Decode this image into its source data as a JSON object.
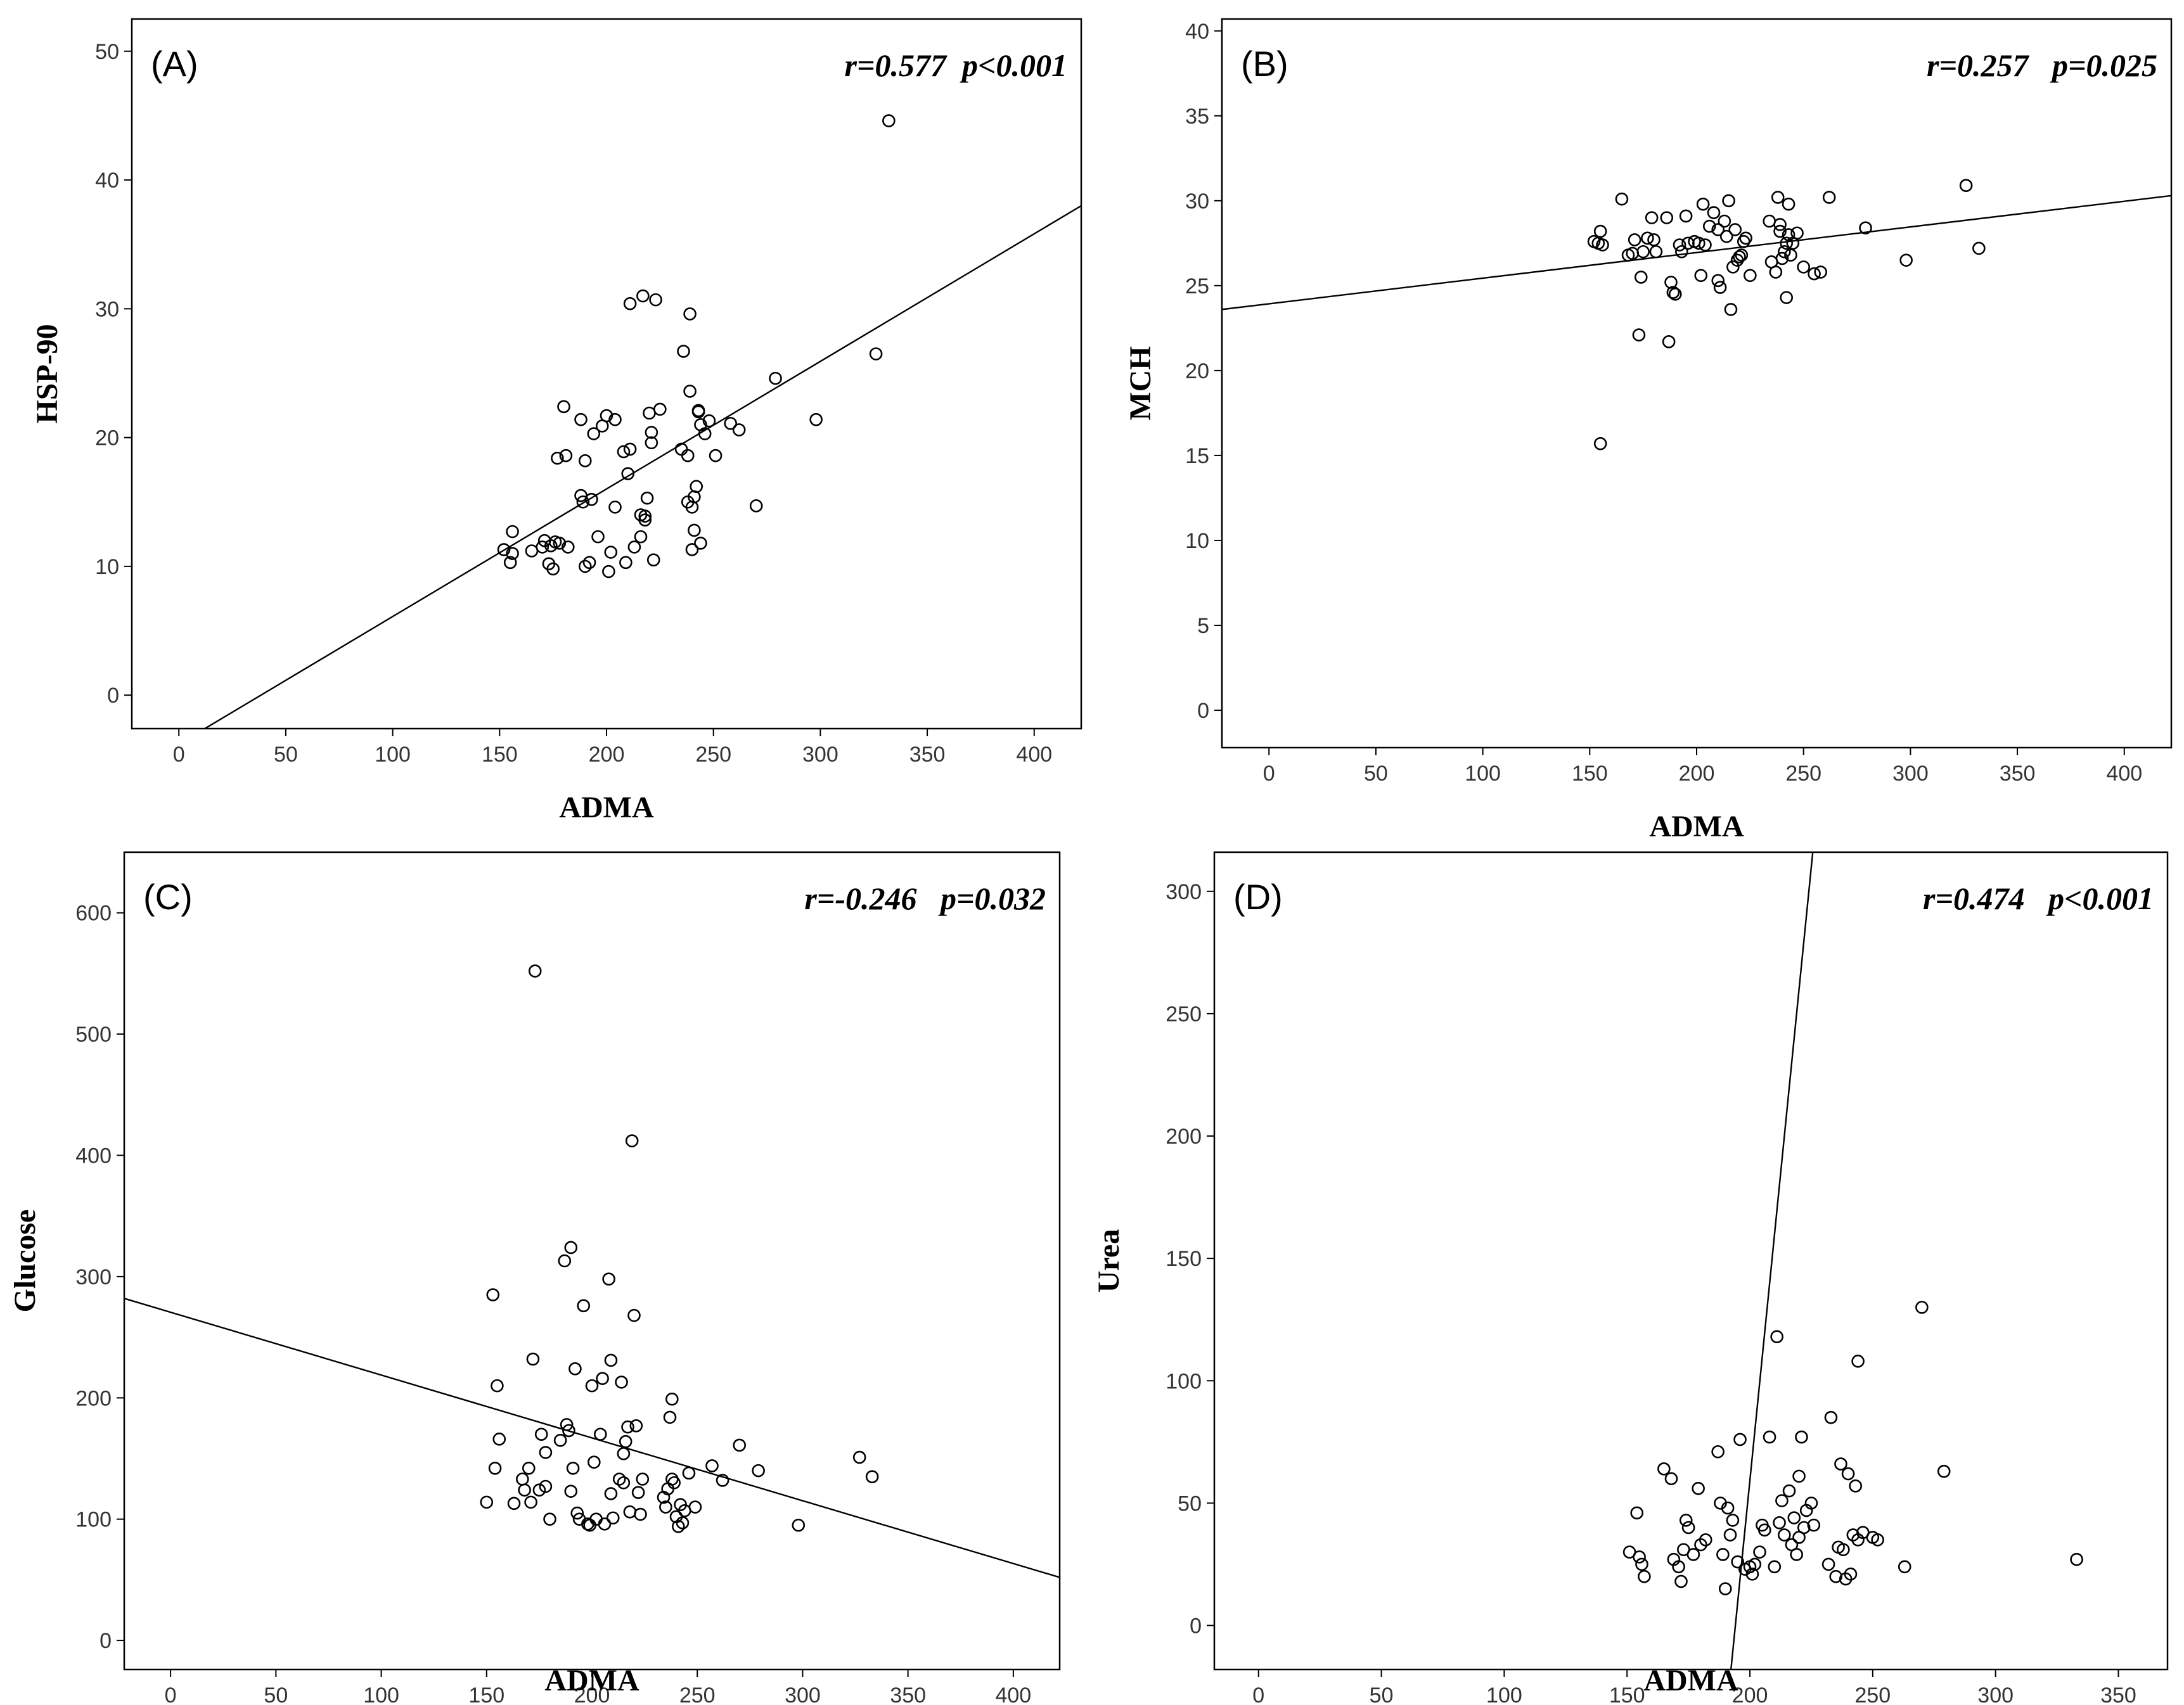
{
  "chart_data": [
    {
      "type": "scatter",
      "panel_label": "(A)",
      "stat": "r=0.577  p<0.001",
      "xlabel": "ADMA",
      "ylabel": "HSP-90",
      "xlim": [
        -22,
        422
      ],
      "ylim": [
        -2.6,
        52.5
      ],
      "xticks": [
        0,
        50,
        100,
        150,
        200,
        250,
        300,
        350,
        400
      ],
      "yticks": [
        0,
        10,
        20,
        30,
        40,
        50
      ],
      "fit_line": [
        [
          -22,
          -5.98
        ],
        [
          422,
          38.0
        ]
      ],
      "points": [
        [
          152,
          11.3
        ],
        [
          155,
          10.3
        ],
        [
          156,
          11.0
        ],
        [
          156,
          12.7
        ],
        [
          165,
          11.2
        ],
        [
          170,
          11.5
        ],
        [
          171,
          12.0
        ],
        [
          173,
          10.2
        ],
        [
          174,
          11.6
        ],
        [
          175,
          9.8
        ],
        [
          176,
          11.9
        ],
        [
          178,
          11.8
        ],
        [
          177,
          18.4
        ],
        [
          180,
          22.4
        ],
        [
          181,
          18.6
        ],
        [
          182,
          11.5
        ],
        [
          188,
          21.4
        ],
        [
          188,
          15.5
        ],
        [
          189,
          15.0
        ],
        [
          190,
          10.0
        ],
        [
          190,
          18.2
        ],
        [
          192,
          10.3
        ],
        [
          193,
          15.2
        ],
        [
          194,
          20.3
        ],
        [
          196,
          12.3
        ],
        [
          198,
          20.9
        ],
        [
          200,
          21.7
        ],
        [
          201,
          9.6
        ],
        [
          202,
          11.1
        ],
        [
          204,
          21.4
        ],
        [
          204,
          14.6
        ],
        [
          208,
          18.9
        ],
        [
          209,
          10.3
        ],
        [
          210,
          17.2
        ],
        [
          211,
          19.1
        ],
        [
          211,
          30.4
        ],
        [
          213,
          11.5
        ],
        [
          216,
          12.3
        ],
        [
          216,
          14.0
        ],
        [
          217,
          31.0
        ],
        [
          218,
          13.6
        ],
        [
          218,
          13.9
        ],
        [
          219,
          15.3
        ],
        [
          220,
          21.9
        ],
        [
          221,
          20.4
        ],
        [
          221,
          19.6
        ],
        [
          222,
          10.5
        ],
        [
          223,
          30.7
        ],
        [
          225,
          22.2
        ],
        [
          235,
          19.1
        ],
        [
          236,
          26.7
        ],
        [
          238,
          15.0
        ],
        [
          238,
          18.6
        ],
        [
          239,
          23.6
        ],
        [
          239,
          29.6
        ],
        [
          240,
          11.3
        ],
        [
          240,
          14.6
        ],
        [
          241,
          15.4
        ],
        [
          241,
          12.8
        ],
        [
          242,
          16.2
        ],
        [
          243,
          22.1
        ],
        [
          243,
          22.0
        ],
        [
          244,
          11.8
        ],
        [
          244,
          21.0
        ],
        [
          246,
          20.3
        ],
        [
          248,
          21.3
        ],
        [
          251,
          18.6
        ],
        [
          258,
          21.1
        ],
        [
          262,
          20.6
        ],
        [
          270,
          14.7
        ],
        [
          279,
          24.6
        ],
        [
          298,
          21.4
        ],
        [
          326,
          26.5
        ],
        [
          332,
          44.6
        ]
      ]
    },
    {
      "type": "scatter",
      "panel_label": "(B)",
      "stat": "r=0.257   p=0.025",
      "xlabel": "ADMA",
      "ylabel": "MCH",
      "xlim": [
        -22,
        422
      ],
      "ylim": [
        -2.2,
        40.7
      ],
      "xticks": [
        0,
        50,
        100,
        150,
        200,
        250,
        300,
        350,
        400
      ],
      "yticks": [
        0,
        5,
        10,
        15,
        20,
        25,
        30,
        35,
        40
      ],
      "fit_line": [
        [
          -22,
          23.6
        ],
        [
          422,
          30.3
        ]
      ],
      "points": [
        [
          152,
          27.6
        ],
        [
          154,
          27.5
        ],
        [
          155,
          28.2
        ],
        [
          156,
          27.4
        ],
        [
          155,
          15.7
        ],
        [
          165,
          30.1
        ],
        [
          168,
          26.8
        ],
        [
          170,
          26.9
        ],
        [
          171,
          27.7
        ],
        [
          173,
          22.1
        ],
        [
          174,
          25.5
        ],
        [
          175,
          27.0
        ],
        [
          177,
          27.8
        ],
        [
          180,
          27.7
        ],
        [
          179,
          29.0
        ],
        [
          181,
          27.0
        ],
        [
          186,
          29.0
        ],
        [
          187,
          21.7
        ],
        [
          188,
          25.2
        ],
        [
          189,
          24.6
        ],
        [
          190,
          24.5
        ],
        [
          192,
          27.4
        ],
        [
          193,
          27.0
        ],
        [
          195,
          29.1
        ],
        [
          196,
          27.5
        ],
        [
          199,
          27.6
        ],
        [
          201,
          27.5
        ],
        [
          202,
          25.6
        ],
        [
          203,
          29.8
        ],
        [
          204,
          27.4
        ],
        [
          206,
          28.5
        ],
        [
          208,
          29.3
        ],
        [
          210,
          25.3
        ],
        [
          210,
          28.3
        ],
        [
          211,
          24.9
        ],
        [
          213,
          28.8
        ],
        [
          214,
          27.9
        ],
        [
          215,
          30.0
        ],
        [
          216,
          23.6
        ],
        [
          217,
          26.1
        ],
        [
          218,
          28.3
        ],
        [
          219,
          26.5
        ],
        [
          220,
          26.7
        ],
        [
          221,
          26.8
        ],
        [
          222,
          27.6
        ],
        [
          223,
          27.8
        ],
        [
          225,
          25.6
        ],
        [
          234,
          28.8
        ],
        [
          235,
          26.4
        ],
        [
          237,
          25.8
        ],
        [
          238,
          30.2
        ],
        [
          239,
          28.2
        ],
        [
          239,
          28.6
        ],
        [
          240,
          26.6
        ],
        [
          241,
          27.0
        ],
        [
          242,
          27.5
        ],
        [
          242,
          24.3
        ],
        [
          243,
          28.0
        ],
        [
          243,
          29.8
        ],
        [
          244,
          26.8
        ],
        [
          245,
          27.5
        ],
        [
          247,
          28.1
        ],
        [
          250,
          26.1
        ],
        [
          255,
          25.7
        ],
        [
          258,
          25.8
        ],
        [
          262,
          30.2
        ],
        [
          279,
          28.4
        ],
        [
          298,
          26.5
        ],
        [
          326,
          30.9
        ],
        [
          332,
          27.2
        ]
      ]
    },
    {
      "type": "scatter",
      "panel_label": "(C)",
      "stat": "r=-0.246   p=0.032",
      "xlabel": "ADMA",
      "ylabel": "Glucose",
      "xlim": [
        -22,
        422
      ],
      "ylim": [
        -24,
        650
      ],
      "xticks": [
        0,
        50,
        100,
        150,
        200,
        250,
        300,
        350,
        400
      ],
      "yticks": [
        0,
        100,
        200,
        300,
        400,
        500,
        600
      ],
      "fit_line": [
        [
          -22,
          282
        ],
        [
          422,
          52
        ]
      ],
      "points": [
        [
          150,
          114
        ],
        [
          153,
          285
        ],
        [
          154,
          142
        ],
        [
          155,
          210
        ],
        [
          156,
          166
        ],
        [
          163,
          113
        ],
        [
          167,
          133
        ],
        [
          168,
          124
        ],
        [
          170,
          142
        ],
        [
          171,
          114
        ],
        [
          172,
          232
        ],
        [
          173,
          552
        ],
        [
          175,
          124
        ],
        [
          176,
          170
        ],
        [
          178,
          127
        ],
        [
          178,
          155
        ],
        [
          180,
          100
        ],
        [
          185,
          165
        ],
        [
          187,
          313
        ],
        [
          188,
          178
        ],
        [
          189,
          173
        ],
        [
          190,
          324
        ],
        [
          190,
          123
        ],
        [
          191,
          142
        ],
        [
          192,
          224
        ],
        [
          193,
          105
        ],
        [
          194,
          100
        ],
        [
          196,
          276
        ],
        [
          198,
          96
        ],
        [
          199,
          95
        ],
        [
          200,
          210
        ],
        [
          201,
          147
        ],
        [
          202,
          100
        ],
        [
          204,
          170
        ],
        [
          205,
          216
        ],
        [
          206,
          96
        ],
        [
          208,
          298
        ],
        [
          209,
          231
        ],
        [
          209,
          121
        ],
        [
          210,
          101
        ],
        [
          213,
          133
        ],
        [
          214,
          213
        ],
        [
          215,
          130
        ],
        [
          215,
          154
        ],
        [
          216,
          164
        ],
        [
          217,
          176
        ],
        [
          218,
          106
        ],
        [
          219,
          412
        ],
        [
          220,
          268
        ],
        [
          221,
          177
        ],
        [
          222,
          122
        ],
        [
          223,
          104
        ],
        [
          224,
          133
        ],
        [
          234,
          118
        ],
        [
          235,
          110
        ],
        [
          236,
          125
        ],
        [
          237,
          184
        ],
        [
          238,
          199
        ],
        [
          238,
          133
        ],
        [
          239,
          130
        ],
        [
          240,
          102
        ],
        [
          241,
          94
        ],
        [
          242,
          112
        ],
        [
          243,
          97
        ],
        [
          244,
          107
        ],
        [
          246,
          138
        ],
        [
          249,
          110
        ],
        [
          257,
          144
        ],
        [
          262,
          132
        ],
        [
          270,
          161
        ],
        [
          279,
          140
        ],
        [
          298,
          95
        ],
        [
          327,
          151
        ],
        [
          333,
          135
        ]
      ]
    },
    {
      "type": "scatter",
      "panel_label": "(D)",
      "stat": "r=0.474   p<0.001",
      "xlabel": "ADMA",
      "ylabel": "Urea",
      "xlim": [
        -18,
        370
      ],
      "ylim": [
        -18,
        316
      ],
      "xticks": [
        0,
        50,
        100,
        150,
        200,
        250,
        300,
        350
      ],
      "yticks": [
        0,
        50,
        100,
        150,
        200,
        250,
        300
      ],
      "fit_line": [
        [
          192.3,
          -18
        ],
        [
          225.6,
          316
        ]
      ],
      "points": [
        [
          151,
          30
        ],
        [
          154,
          46
        ],
        [
          155,
          28
        ],
        [
          156,
          25
        ],
        [
          157,
          20
        ],
        [
          165,
          64
        ],
        [
          168,
          60
        ],
        [
          169,
          27
        ],
        [
          171,
          24
        ],
        [
          172,
          18
        ],
        [
          173,
          31
        ],
        [
          174,
          43
        ],
        [
          175,
          40
        ],
        [
          177,
          29
        ],
        [
          179,
          56
        ],
        [
          180,
          33
        ],
        [
          182,
          35
        ],
        [
          187,
          71
        ],
        [
          188,
          50
        ],
        [
          189,
          29
        ],
        [
          190,
          15
        ],
        [
          191,
          48
        ],
        [
          192,
          37
        ],
        [
          193,
          43
        ],
        [
          195,
          26
        ],
        [
          196,
          76
        ],
        [
          198,
          23
        ],
        [
          200,
          24
        ],
        [
          201,
          21
        ],
        [
          202,
          25
        ],
        [
          204,
          30
        ],
        [
          205,
          41
        ],
        [
          206,
          39
        ],
        [
          208,
          77
        ],
        [
          210,
          24
        ],
        [
          211,
          118
        ],
        [
          212,
          42
        ],
        [
          213,
          51
        ],
        [
          214,
          37
        ],
        [
          216,
          55
        ],
        [
          217,
          33
        ],
        [
          218,
          44
        ],
        [
          219,
          29
        ],
        [
          220,
          61
        ],
        [
          220,
          36
        ],
        [
          221,
          77
        ],
        [
          222,
          40
        ],
        [
          223,
          47
        ],
        [
          225,
          50
        ],
        [
          226,
          41
        ],
        [
          232,
          25
        ],
        [
          233,
          85
        ],
        [
          235,
          20
        ],
        [
          236,
          32
        ],
        [
          237,
          66
        ],
        [
          238,
          31
        ],
        [
          239,
          19
        ],
        [
          240,
          62
        ],
        [
          241,
          21
        ],
        [
          242,
          37
        ],
        [
          243,
          57
        ],
        [
          244,
          108
        ],
        [
          244,
          35
        ],
        [
          246,
          38
        ],
        [
          250,
          36
        ],
        [
          252,
          35
        ],
        [
          263,
          24
        ],
        [
          270,
          130
        ],
        [
          279,
          63
        ],
        [
          333,
          27
        ]
      ]
    }
  ]
}
